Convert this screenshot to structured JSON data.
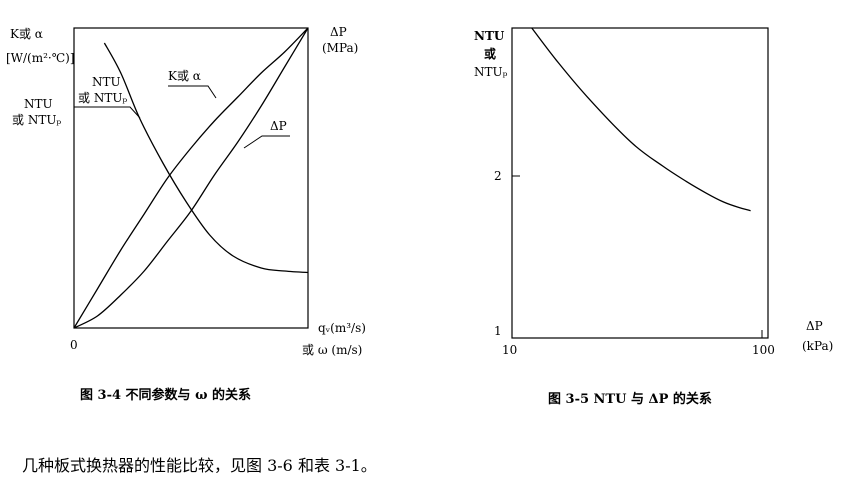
{
  "fig34": {
    "caption": "图 3-4 不同参数与 ω 的关系",
    "left_axis_label_1": "K或 α",
    "left_axis_label_2": "[W/(m²·℃)]",
    "left_axis_label_3": "NTU",
    "left_axis_label_4": "或 NTUₚ",
    "right_axis_label_1": "ΔP",
    "right_axis_label_2": "(MPa)",
    "x_origin_label": "0",
    "x_axis_label_1": "qᵥ(m³/s)",
    "x_axis_label_2": "或 ω (m/s)",
    "curve_label_ntu_1": "NTU",
    "curve_label_ntu_2": "或 NTUₚ",
    "curve_label_k": "K或 α",
    "curve_label_dp": "ΔP"
  },
  "fig35": {
    "caption": "图 3-5 NTU 与 ΔP 的关系",
    "y_axis_label_1": "NTU",
    "y_axis_label_2": "或",
    "y_axis_label_3": "NTUₚ",
    "y_tick_2": "2",
    "y_tick_1": "1",
    "x_tick_10": "10",
    "x_tick_100": "100",
    "x_axis_label_1": "ΔP",
    "x_axis_label_2": "(kPa)"
  },
  "body_text": "几种板式换热器的性能比较，见图 3-6 和表 3-1。",
  "chart_data": [
    {
      "type": "line",
      "title": "图 3-4 不同参数与 ω 的关系",
      "xlabel": "qᵥ(m³/s) 或 ω (m/s)",
      "ylabel": "K或 α [W/(m²·℃)]; NTU 或 NTUₚ",
      "ylabel_right": "ΔP (MPa)",
      "x_ticks": [
        "0"
      ],
      "series": [
        {
          "name": "NTU 或 NTUₚ",
          "x": [
            0.13,
            0.2,
            0.28,
            0.38,
            0.48,
            0.58,
            0.68,
            0.8,
            0.9,
            1.0
          ],
          "y": [
            0.95,
            0.85,
            0.7,
            0.55,
            0.42,
            0.31,
            0.24,
            0.2,
            0.19,
            0.185
          ]
        },
        {
          "name": "K或 α",
          "x": [
            0.0,
            0.1,
            0.2,
            0.3,
            0.4,
            0.5,
            0.6,
            0.7,
            0.8,
            0.9,
            1.0
          ],
          "y": [
            0.0,
            0.13,
            0.26,
            0.38,
            0.5,
            0.6,
            0.69,
            0.77,
            0.85,
            0.92,
            1.0
          ]
        },
        {
          "name": "ΔP",
          "x": [
            0.0,
            0.1,
            0.2,
            0.3,
            0.4,
            0.5,
            0.6,
            0.7,
            0.8,
            0.9,
            1.0
          ],
          "y": [
            0.0,
            0.04,
            0.11,
            0.19,
            0.29,
            0.39,
            0.51,
            0.62,
            0.74,
            0.87,
            1.0
          ]
        }
      ]
    },
    {
      "type": "line",
      "title": "图 3-5 NTU 与 ΔP 的关系",
      "xlabel": "ΔP (kPa)",
      "ylabel": "NTU 或 NTUₚ",
      "x_scale": "log",
      "y_scale": "log",
      "xlim": [
        10,
        100
      ],
      "ylim": [
        1,
        3
      ],
      "x_ticks": [
        10,
        100
      ],
      "y_ticks": [
        1,
        2
      ],
      "series": [
        {
          "name": "NTU",
          "x": [
            12,
            15,
            20,
            30,
            40,
            50,
            60,
            70,
            80,
            90
          ],
          "y": [
            3.0,
            2.68,
            2.35,
            2.0,
            1.84,
            1.74,
            1.67,
            1.62,
            1.59,
            1.57
          ]
        }
      ]
    }
  ]
}
